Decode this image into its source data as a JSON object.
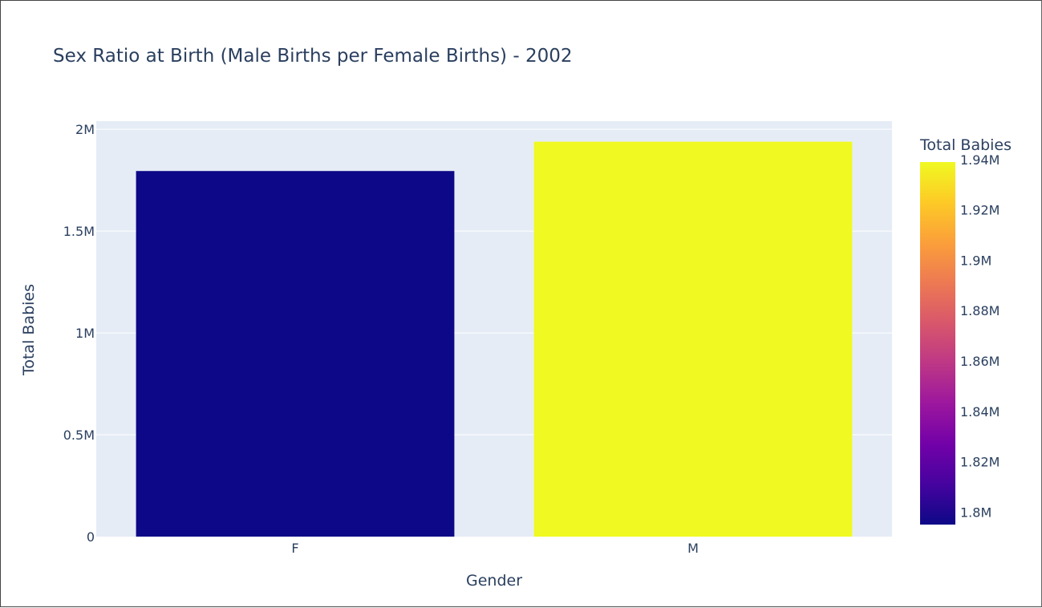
{
  "chart_data": {
    "type": "bar",
    "title": "Sex Ratio at Birth (Male Births per Female Births) - 2002",
    "xlabel": "Gender",
    "ylabel": "Total Babies",
    "categories": [
      "F",
      "M"
    ],
    "values": [
      1795000,
      1939000
    ],
    "ylim": [
      0,
      2040000
    ],
    "y_ticks": [
      {
        "value": 0,
        "label": "0"
      },
      {
        "value": 500000,
        "label": "0.5M"
      },
      {
        "value": 1000000,
        "label": "1M"
      },
      {
        "value": 1500000,
        "label": "1.5M"
      },
      {
        "value": 2000000,
        "label": "2M"
      }
    ],
    "grid": true,
    "colorbar": {
      "title": "Total Babies",
      "range": [
        1795000,
        1939000
      ],
      "ticks": [
        {
          "value": 1800000,
          "label": "1.8M"
        },
        {
          "value": 1820000,
          "label": "1.82M"
        },
        {
          "value": 1840000,
          "label": "1.84M"
        },
        {
          "value": 1860000,
          "label": "1.86M"
        },
        {
          "value": 1880000,
          "label": "1.88M"
        },
        {
          "value": 1900000,
          "label": "1.9M"
        },
        {
          "value": 1920000,
          "label": "1.92M"
        },
        {
          "value": 1940000,
          "label": "1.94M"
        }
      ],
      "colorscale": [
        "#0d0887",
        "#46039f",
        "#7201a8",
        "#9c179e",
        "#bd3786",
        "#d8576b",
        "#ed7953",
        "#fb9f3a",
        "#fdca26",
        "#f0f921"
      ]
    },
    "colors": {
      "plot_bg": "#e5ecf6",
      "grid": "#ffffff",
      "text": "#2a3f5f"
    }
  }
}
